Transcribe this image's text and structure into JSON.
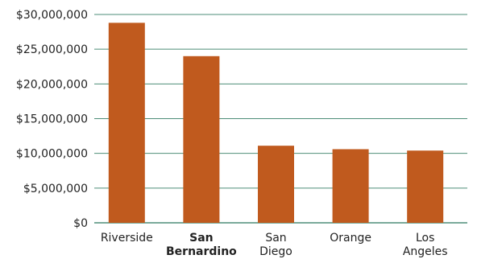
{
  "colors": {
    "bar": "#C05A1E",
    "grid": "#4E8E78",
    "axis": "#4E8E78",
    "text": "#222222"
  },
  "chart_data": {
    "type": "bar",
    "categories": [
      {
        "lines": [
          "Riverside"
        ],
        "bold": false
      },
      {
        "lines": [
          "San",
          "Bernardino"
        ],
        "bold": true
      },
      {
        "lines": [
          "San",
          "Diego"
        ],
        "bold": false
      },
      {
        "lines": [
          "Orange"
        ],
        "bold": false
      },
      {
        "lines": [
          "Los",
          "Angeles"
        ],
        "bold": false
      }
    ],
    "values": [
      28800000,
      24000000,
      11100000,
      10600000,
      10400000
    ],
    "ylim": [
      0,
      30000000
    ],
    "yticks": [
      0,
      5000000,
      10000000,
      15000000,
      20000000,
      25000000,
      30000000
    ],
    "ytick_labels": [
      "$0",
      "$5,000,000",
      "$10,000,000",
      "$15,000,000",
      "$20,000,000",
      "$25,000,000",
      "$30,000,000"
    ],
    "grid": true,
    "title": "",
    "xlabel": "",
    "ylabel": ""
  }
}
